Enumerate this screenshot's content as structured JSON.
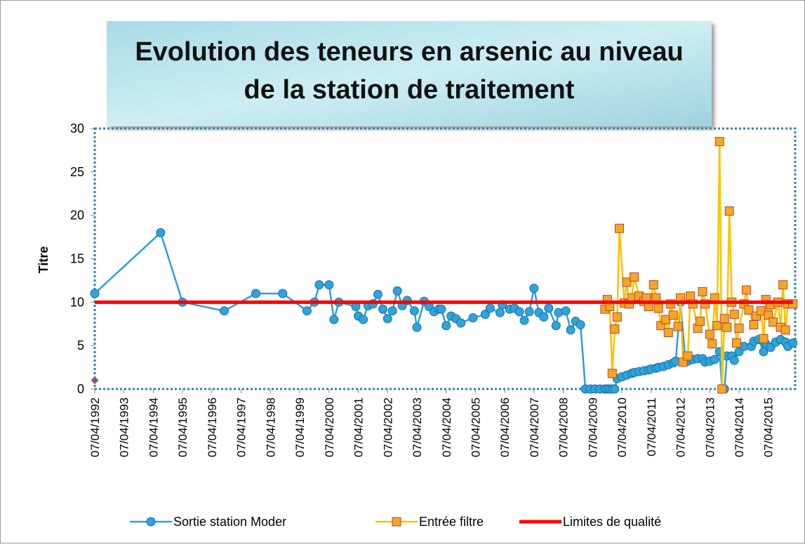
{
  "chart_data": {
    "type": "line",
    "title": [
      "Evolution des teneurs en arsenic au niveau",
      "de la station de traitement"
    ],
    "ylabel": "Titre",
    "xlim": [
      "07/04/1992",
      "07/03/2016"
    ],
    "xticks": [
      "07/04/1992",
      "07/04/1993",
      "07/04/1994",
      "07/04/1995",
      "07/04/1996",
      "07/04/1997",
      "07/04/1998",
      "07/04/1999",
      "07/04/2000",
      "07/04/2001",
      "07/04/2002",
      "07/04/2003",
      "07/04/2004",
      "07/04/2005",
      "07/04/2006",
      "07/04/2007",
      "07/04/2008",
      "07/04/2009",
      "07/04/2010",
      "07/04/2011",
      "07/04/2012",
      "07/04/2013",
      "07/04/2014",
      "07/04/2015"
    ],
    "ylim": [
      0,
      30
    ],
    "yticks": [
      0,
      5,
      10,
      15,
      20,
      25,
      30
    ],
    "legend": "bottom",
    "series": [
      {
        "name": "Sortie station Moder",
        "color": "#2e9fd8",
        "marker": "circle",
        "x": [
          "07/04/1992",
          "07/07/1994",
          "07/04/1995",
          "07/09/1996",
          "07/10/1997",
          "07/09/1998",
          "07/07/1999",
          "07/10/1999",
          "07/12/1999",
          "07/04/2000",
          "07/06/2000",
          "07/08/2000",
          "07/03/2001",
          "07/04/2001",
          "07/06/2001",
          "07/08/2001",
          "07/10/2001",
          "07/12/2001",
          "07/02/2002",
          "07/04/2002",
          "07/06/2002",
          "07/08/2002",
          "07/10/2002",
          "07/12/2002",
          "07/03/2003",
          "07/04/2003",
          "07/07/2003",
          "07/09/2003",
          "07/11/2003",
          "07/01/2004",
          "07/02/2004",
          "07/04/2004",
          "07/06/2004",
          "07/08/2004",
          "07/10/2004",
          "07/03/2005",
          "07/08/2005",
          "07/10/2005",
          "07/02/2006",
          "07/03/2006",
          "07/06/2006",
          "07/08/2006",
          "07/10/2006",
          "07/12/2006",
          "07/02/2007",
          "07/04/2007",
          "07/06/2007",
          "07/08/2007",
          "07/10/2007",
          "07/01/2008",
          "07/02/2008",
          "07/05/2008",
          "07/07/2008",
          "07/09/2008",
          "07/11/2008",
          "07/01/2009",
          "07/03/2009",
          "07/05/2009",
          "07/07/2009",
          "07/09/2009",
          "07/10/2009",
          "07/11/2009",
          "07/12/2009",
          "07/01/2010",
          "07/02/2010",
          "07/04/2010",
          "07/06/2010",
          "07/08/2010",
          "07/09/2010",
          "07/11/2010",
          "07/01/2011",
          "07/03/2011",
          "07/04/2011",
          "07/06/2011",
          "07/07/2011",
          "07/09/2011",
          "07/11/2011",
          "07/01/2012",
          "07/02/2012",
          "07/04/2012",
          "07/06/2012",
          "07/07/2012",
          "07/09/2012",
          "07/11/2012",
          "07/01/2013",
          "07/02/2013",
          "07/04/2013",
          "07/06/2013",
          "07/08/2013",
          "07/09/2013",
          "07/10/2013",
          "07/11/2013",
          "07/01/2014",
          "07/02/2014",
          "07/04/2014",
          "07/06/2014",
          "07/09/2014",
          "07/10/2014",
          "07/12/2014",
          "07/02/2015",
          "07/03/2015",
          "07/05/2015",
          "07/07/2015",
          "07/09/2015",
          "07/11/2015",
          "07/12/2015",
          "07/02/2016"
        ],
        "values": [
          11,
          18,
          10,
          9,
          11,
          11,
          9,
          10,
          12,
          12,
          8,
          10,
          9.5,
          8.4,
          8,
          9.6,
          9.8,
          10.9,
          9.2,
          8.1,
          9,
          11.3,
          9.6,
          10.2,
          9,
          7.1,
          10.1,
          9.5,
          8.9,
          9.2,
          9.2,
          7.3,
          8.4,
          8.1,
          7.6,
          8.2,
          8.6,
          9.3,
          8.8,
          9.7,
          9.2,
          9.3,
          8.9,
          7.9,
          8.9,
          11.6,
          8.8,
          8.3,
          9.3,
          7.3,
          8.8,
          9,
          6.8,
          7.8,
          7.4,
          0,
          0,
          0,
          0,
          0,
          0,
          0,
          0,
          0,
          1.2,
          1.4,
          1.6,
          1.8,
          1.9,
          2,
          2.1,
          2.2,
          2.3,
          2.4,
          2.5,
          2.6,
          2.8,
          3,
          3.2,
          10,
          3.3,
          3.2,
          3.4,
          3.5,
          3.5,
          3.1,
          3.2,
          3.4,
          4.3,
          0,
          0,
          3.8,
          3.8,
          3.3,
          4.3,
          4.9,
          4.9,
          5.5,
          5.7,
          4.3,
          5.2,
          4.8,
          5.4,
          5.7,
          5.4,
          4.9,
          5.3
        ]
      },
      {
        "name": "Entrée filtre",
        "color": "#ffc000",
        "marker": "square",
        "x": [
          "07/09/2009",
          "07/10/2009",
          "07/11/2009",
          "07/12/2009",
          "07/01/2010",
          "07/02/2010",
          "07/03/2010",
          "07/05/2010",
          "07/06/2010",
          "07/07/2010",
          "07/08/2010",
          "07/09/2010",
          "07/11/2010",
          "07/01/2011",
          "07/02/2011",
          "07/03/2011",
          "07/05/2011",
          "07/06/2011",
          "07/07/2011",
          "07/08/2011",
          "07/10/2011",
          "07/11/2011",
          "07/12/2011",
          "07/01/2012",
          "07/03/2012",
          "07/04/2012",
          "07/05/2012",
          "07/07/2012",
          "07/08/2012",
          "07/09/2012",
          "07/11/2012",
          "07/12/2012",
          "07/01/2013",
          "07/02/2013",
          "07/04/2013",
          "07/05/2013",
          "07/06/2013",
          "07/07/2013",
          "07/08/2013",
          "07/09/2013",
          "07/10/2013",
          "07/11/2013",
          "07/12/2013",
          "07/01/2014",
          "07/02/2014",
          "07/03/2014",
          "07/04/2014",
          "07/06/2014",
          "07/07/2014",
          "07/08/2014",
          "07/10/2014",
          "07/11/2014",
          "07/01/2015",
          "07/02/2015",
          "07/03/2015",
          "07/04/2015",
          "07/05/2015",
          "07/06/2015",
          "07/08/2015",
          "07/09/2015",
          "07/10/2015",
          "07/11/2015",
          "07/12/2015",
          "07/02/2016"
        ],
        "values": [
          9.2,
          10.3,
          9.5,
          1.8,
          6.9,
          8.3,
          18.5,
          9.9,
          12.3,
          9.8,
          10.5,
          12.9,
          10.7,
          10.1,
          10.5,
          9.5,
          12,
          10.5,
          9.3,
          7.3,
          8,
          6.5,
          9.8,
          8.5,
          7.2,
          10.5,
          3.1,
          3.8,
          10.7,
          9.8,
          7,
          7.8,
          11.2,
          9.8,
          6.3,
          5.2,
          10.5,
          7.3,
          28.5,
          0,
          8.1,
          7.1,
          20.5,
          10,
          8.6,
          5.3,
          7,
          9.8,
          11.4,
          9.1,
          7.4,
          8.4,
          9,
          5.8,
          10.3,
          8.5,
          9.7,
          7.7,
          10,
          7.1,
          12,
          6.8,
          9.8,
          9.8
        ]
      },
      {
        "name": "Limites de qualité",
        "color": "#ff0000",
        "marker": "none",
        "x": [
          "07/04/1992",
          "07/02/2016"
        ],
        "values": [
          10,
          10
        ]
      },
      {
        "color": "#7b4fa0",
        "marker": "diamond",
        "x": [
          "07/04/1992"
        ],
        "values": [
          1
        ]
      }
    ]
  }
}
